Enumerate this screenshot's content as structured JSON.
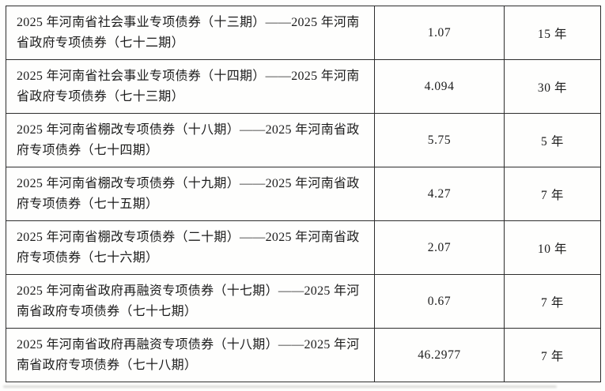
{
  "document": {
    "background_color": "#fefefd",
    "border_color": "#2d2d2d",
    "text_color": "#1c1c1c"
  },
  "table": {
    "columns": [
      "bond_name",
      "amount",
      "term"
    ],
    "rows": [
      {
        "name": "2025 年河南省社会事业专项债券（十三期）——2025 年河南省政府专项债券（七十二期）",
        "amount": "1.07",
        "term": "15 年"
      },
      {
        "name": "2025 年河南省社会事业专项债券（十四期）——2025 年河南省政府专项债券（七十三期）",
        "amount": "4.094",
        "term": "30 年"
      },
      {
        "name": "2025 年河南省棚改专项债券（十八期）——2025 年河南省政府专项债券（七十四期）",
        "amount": "5.75",
        "term": "5 年"
      },
      {
        "name": "2025 年河南省棚改专项债券（十九期）——2025 年河南省政府专项债券（七十五期）",
        "amount": "4.27",
        "term": "7 年"
      },
      {
        "name": "2025 年河南省棚改专项债券（二十期）——2025 年河南省政府专项债券（七十六期）",
        "amount": "2.07",
        "term": "10 年"
      },
      {
        "name": "2025 年河南省政府再融资专项债券（十七期）——2025 年河南省政府专项债券（七十七期）",
        "amount": "0.67",
        "term": "7 年"
      },
      {
        "name": "2025 年河南省政府再融资专项债券（十八期）——2025 年河南省政府专项债券（七十八期）",
        "amount": "46.2977",
        "term": "7 年"
      }
    ]
  }
}
